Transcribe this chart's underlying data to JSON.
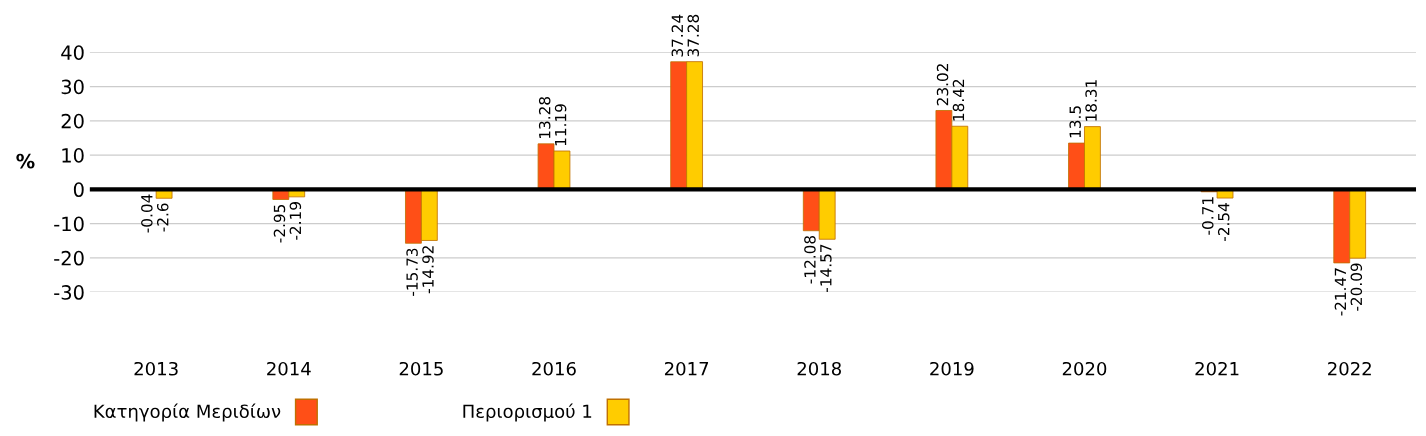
{
  "chart_data": {
    "type": "bar",
    "ylabel": "%",
    "categories": [
      "2013",
      "2014",
      "2015",
      "2016",
      "2017",
      "2018",
      "2019",
      "2020",
      "2021",
      "2022"
    ],
    "series": [
      {
        "name": "Κατηγορία Μεριδίων",
        "color": "#ff4f17",
        "values": [
          -0.04,
          -2.95,
          -15.73,
          13.28,
          37.24,
          -12.08,
          23.02,
          13.5,
          -0.71,
          -21.47
        ]
      },
      {
        "name": "Περιορισμού 1",
        "color": "#ffcc00",
        "values": [
          -2.6,
          -2.19,
          -14.92,
          11.19,
          37.28,
          -14.57,
          18.42,
          18.31,
          -2.54,
          -20.09
        ]
      }
    ],
    "ylim": [
      -30,
      40
    ],
    "yticks": [
      -30,
      -20,
      -10,
      0,
      10,
      20,
      30,
      40
    ],
    "ref_lines": [
      {
        "axis": "y",
        "value": 0,
        "color": "#000000"
      }
    ],
    "grid": "y",
    "legend": "bottom left",
    "data_labels": true
  }
}
